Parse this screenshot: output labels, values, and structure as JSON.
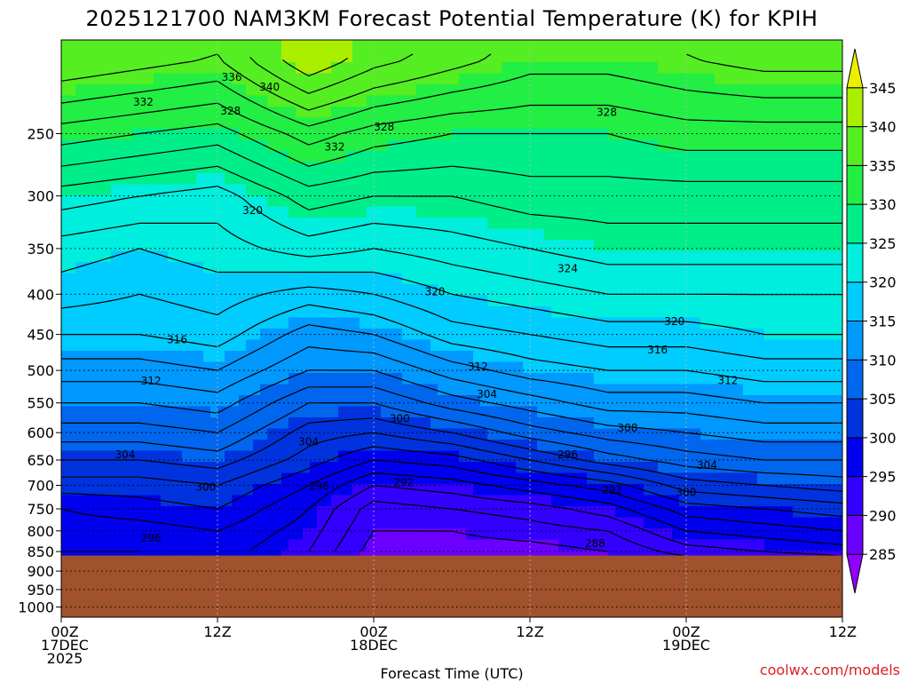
{
  "chart_data": {
    "type": "heatmap",
    "title": "2025121700 NAM3KM Forecast Potential Temperature (K) for KPIH",
    "xlabel": "Forecast Time (UTC)",
    "ylabel": "",
    "credit": "coolwx.com/models",
    "units": "K",
    "x_range_hours": [
      0,
      60
    ],
    "y_range_hpa": [
      1030,
      190
    ],
    "surface_pressure_hpa": 860,
    "x_ticks": [
      {
        "hour": 0,
        "lines": [
          "00Z",
          "17DEC",
          "2025"
        ]
      },
      {
        "hour": 12,
        "lines": [
          "12Z"
        ]
      },
      {
        "hour": 24,
        "lines": [
          "00Z",
          "18DEC"
        ]
      },
      {
        "hour": 36,
        "lines": [
          "12Z"
        ]
      },
      {
        "hour": 48,
        "lines": [
          "00Z",
          "19DEC"
        ]
      },
      {
        "hour": 60,
        "lines": [
          "12Z"
        ]
      }
    ],
    "y_ticks": [
      "250",
      "300",
      "350",
      "400",
      "450",
      "500",
      "550",
      "600",
      "650",
      "700",
      "750",
      "800",
      "850",
      "900",
      "950",
      "1000"
    ],
    "colorbar": {
      "levels": [
        285,
        290,
        295,
        300,
        305,
        310,
        315,
        320,
        325,
        330,
        335,
        340,
        345
      ],
      "labels": [
        "285",
        "290",
        "295",
        "300",
        "305",
        "310",
        "315",
        "320",
        "325",
        "330",
        "335",
        "340",
        "345"
      ],
      "colors": [
        "#8f00ff",
        "#6a00ff",
        "#3300ff",
        "#0000ee",
        "#0033dd",
        "#0066ee",
        "#0099ff",
        "#00ccff",
        "#00eedd",
        "#00ee88",
        "#22ee44",
        "#55ee22",
        "#aaee00",
        "#eeee00"
      ]
    },
    "theta_profiles": [
      {
        "hour": 0,
        "pressures": [
          200,
          250,
          300,
          350,
          400,
          450,
          500,
          550,
          600,
          650,
          700,
          750,
          800,
          850,
          860
        ],
        "theta": [
          338,
          331,
          325,
          321,
          319,
          316,
          313,
          310,
          307,
          304,
          301,
          298,
          297,
          296,
          296
        ]
      },
      {
        "hour": 6,
        "pressures": [
          200,
          250,
          300,
          350,
          400,
          450,
          500,
          550,
          600,
          650,
          700,
          750,
          800,
          850,
          860
        ],
        "theta": [
          337,
          330,
          324,
          320,
          318,
          316,
          313,
          310,
          307,
          304,
          301,
          299,
          297,
          296,
          296
        ]
      },
      {
        "hour": 12,
        "pressures": [
          200,
          250,
          300,
          350,
          400,
          450,
          500,
          550,
          600,
          650,
          700,
          750,
          800,
          850,
          860
        ],
        "theta": [
          336,
          329,
          323,
          321,
          319,
          317,
          314,
          311,
          308,
          305,
          302,
          300,
          298,
          297,
          297
        ]
      },
      {
        "hour": 19,
        "pressures": [
          200,
          250,
          300,
          350,
          400,
          450,
          500,
          550,
          600,
          650,
          700,
          750,
          800,
          850,
          860
        ],
        "theta": [
          342,
          333,
          327,
          323,
          317,
          313,
          310,
          306,
          303,
          301,
          298,
          296,
          295,
          294,
          294
        ]
      },
      {
        "hour": 24,
        "pressures": [
          200,
          250,
          300,
          350,
          400,
          450,
          500,
          550,
          600,
          650,
          700,
          750,
          800,
          850,
          860
        ],
        "theta": [
          339,
          331,
          326,
          322,
          318,
          314,
          310,
          306,
          302,
          298,
          294,
          291,
          290,
          289,
          289
        ]
      },
      {
        "hour": 30,
        "pressures": [
          200,
          250,
          300,
          350,
          400,
          450,
          500,
          550,
          600,
          650,
          700,
          750,
          800,
          850,
          860
        ],
        "theta": [
          337,
          330,
          326,
          323,
          320,
          317,
          313,
          309,
          304,
          299,
          295,
          292,
          290,
          289,
          289
        ]
      },
      {
        "hour": 36,
        "pressures": [
          200,
          250,
          300,
          350,
          400,
          450,
          500,
          550,
          600,
          650,
          700,
          750,
          800,
          850,
          860
        ],
        "theta": [
          335,
          330,
          327,
          324,
          321,
          318,
          315,
          311,
          307,
          302,
          297,
          293,
          291,
          289,
          289
        ]
      },
      {
        "hour": 42,
        "pressures": [
          200,
          250,
          300,
          350,
          400,
          450,
          500,
          550,
          600,
          650,
          700,
          750,
          800,
          850,
          860
        ],
        "theta": [
          335,
          330,
          327,
          325,
          322,
          319,
          316,
          313,
          309,
          305,
          299,
          295,
          292,
          290,
          290
        ]
      },
      {
        "hour": 48,
        "pressures": [
          200,
          250,
          300,
          350,
          400,
          450,
          500,
          550,
          600,
          650,
          700,
          750,
          800,
          850,
          860
        ],
        "theta": [
          336,
          331,
          327,
          325,
          322,
          319,
          316,
          313,
          310,
          307,
          303,
          299,
          296,
          293,
          292
        ]
      },
      {
        "hour": 54,
        "pressures": [
          200,
          250,
          300,
          350,
          400,
          450,
          500,
          550,
          600,
          650,
          700,
          750,
          800,
          850,
          860
        ],
        "theta": [
          337,
          331,
          327,
          325,
          322,
          320,
          317,
          314,
          311,
          308,
          304,
          300,
          297,
          294,
          293
        ]
      },
      {
        "hour": 60,
        "pressures": [
          200,
          250,
          300,
          350,
          400,
          450,
          500,
          550,
          600,
          650,
          700,
          750,
          800,
          850,
          860
        ],
        "theta": [
          337,
          331,
          327,
          325,
          322,
          320,
          317,
          314,
          311,
          308,
          305,
          301,
          298,
          295,
          294
        ]
      }
    ],
    "contour_labels": [
      {
        "text": "336",
        "hour": 13.1,
        "p": 212
      },
      {
        "text": "340",
        "hour": 16.0,
        "p": 218
      },
      {
        "text": "332",
        "hour": 6.3,
        "p": 228
      },
      {
        "text": "328",
        "hour": 13.0,
        "p": 234
      },
      {
        "text": "332",
        "hour": 21.0,
        "p": 260
      },
      {
        "text": "328",
        "hour": 24.8,
        "p": 245
      },
      {
        "text": "328",
        "hour": 41.9,
        "p": 235
      },
      {
        "text": "320",
        "hour": 14.7,
        "p": 313
      },
      {
        "text": "324",
        "hour": 38.9,
        "p": 371
      },
      {
        "text": "320",
        "hour": 28.7,
        "p": 397
      },
      {
        "text": "320",
        "hour": 47.1,
        "p": 433
      },
      {
        "text": "316",
        "hour": 8.9,
        "p": 457
      },
      {
        "text": "316",
        "hour": 45.8,
        "p": 471
      },
      {
        "text": "312",
        "hour": 32.0,
        "p": 495
      },
      {
        "text": "312",
        "hour": 6.9,
        "p": 516
      },
      {
        "text": "312",
        "hour": 51.2,
        "p": 515
      },
      {
        "text": "304",
        "hour": 32.7,
        "p": 536
      },
      {
        "text": "300",
        "hour": 26.0,
        "p": 576
      },
      {
        "text": "308",
        "hour": 43.5,
        "p": 592
      },
      {
        "text": "304",
        "hour": 19.0,
        "p": 616
      },
      {
        "text": "304",
        "hour": 4.9,
        "p": 640
      },
      {
        "text": "296",
        "hour": 38.9,
        "p": 640
      },
      {
        "text": "304",
        "hour": 49.6,
        "p": 660
      },
      {
        "text": "292",
        "hour": 26.3,
        "p": 695
      },
      {
        "text": "296",
        "hour": 19.8,
        "p": 702
      },
      {
        "text": "300",
        "hour": 11.1,
        "p": 704
      },
      {
        "text": "292",
        "hour": 42.3,
        "p": 710
      },
      {
        "text": "300",
        "hour": 48.0,
        "p": 715
      },
      {
        "text": "296",
        "hour": 6.9,
        "p": 817
      },
      {
        "text": "288",
        "hour": 41.0,
        "p": 830
      }
    ]
  }
}
